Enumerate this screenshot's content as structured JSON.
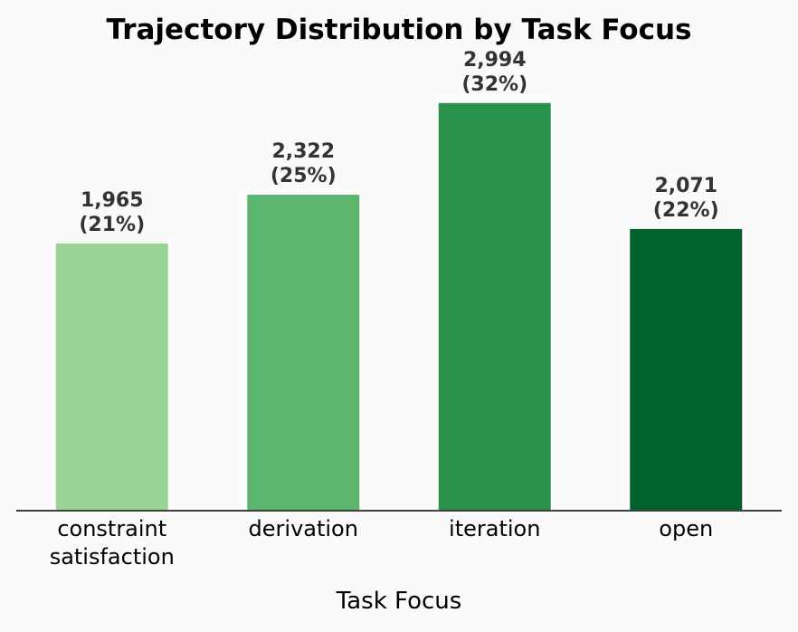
{
  "chart_data": {
    "type": "bar",
    "title": "Trajectory Distribution by Task Focus",
    "xlabel": "Task Focus",
    "ylabel": "",
    "categories": [
      [
        "constraint",
        "satisfaction"
      ],
      [
        "derivation"
      ],
      [
        "iteration"
      ],
      [
        "open"
      ]
    ],
    "values": [
      1965,
      2322,
      2994,
      2071
    ],
    "value_labels": [
      "1,965",
      "2,322",
      "2,994",
      "2,071"
    ],
    "percent_labels": [
      "(21%)",
      "(25%)",
      "(32%)",
      "(22%)"
    ],
    "colors": [
      "#9ad494",
      "#5bb56c",
      "#2a914a",
      "#00622a"
    ],
    "ylim": [
      0,
      3500
    ],
    "grid": false,
    "legend": "none"
  }
}
